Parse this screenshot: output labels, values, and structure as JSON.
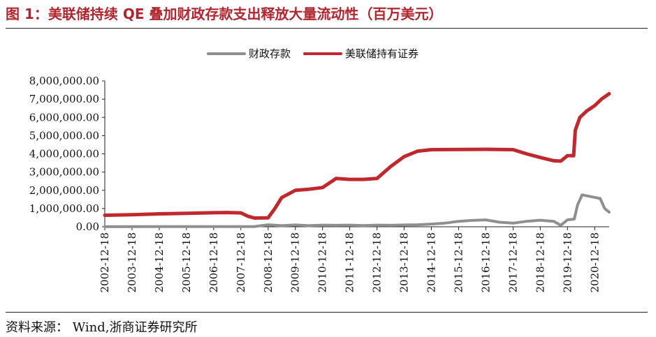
{
  "header": {
    "title": "图 1：美联储持续 QE 叠加财政存款支出释放大量流动性（百万美元）"
  },
  "footer": {
    "source": "资料来源：  Wind,浙商证券研究所"
  },
  "colors": {
    "title": "#b0262f",
    "fed": "#c0282e",
    "tga": "#8f8f8f",
    "axis": "#222222"
  },
  "chart_data": {
    "type": "line",
    "title": "图 1：美联储持续 QE 叠加财政存款支出释放大量流动性（百万美元）",
    "xlabel": "",
    "ylabel": "",
    "grid": false,
    "legend_position": "top-center",
    "ylim": [
      0,
      8000000
    ],
    "xlim": [
      "2002-12-18",
      "2021-06-30"
    ],
    "y_ticks": [
      "0.00",
      "1,000,000.00",
      "2,000,000.00",
      "3,000,000.00",
      "4,000,000.00",
      "5,000,000.00",
      "6,000,000.00",
      "7,000,000.00",
      "8,000,000.00"
    ],
    "x_ticks": [
      "2002-12-18",
      "2003-12-18",
      "2004-12-18",
      "2005-12-18",
      "2006-12-18",
      "2007-12-18",
      "2008-12-18",
      "2009-12-18",
      "2010-12-18",
      "2011-12-18",
      "2012-12-18",
      "2013-12-18",
      "2014-12-18",
      "2015-12-18",
      "2016-12-18",
      "2017-12-18",
      "2018-12-18",
      "2019-12-18",
      "2020-12-18"
    ],
    "series": [
      {
        "name": "财政存款",
        "color": "#8f8f8f",
        "points": [
          [
            "2002-12-18",
            5000
          ],
          [
            "2004-12-18",
            6000
          ],
          [
            "2006-12-18",
            6000
          ],
          [
            "2007-12-18",
            7000
          ],
          [
            "2008-06-18",
            10000
          ],
          [
            "2008-09-18",
            60000
          ],
          [
            "2008-12-18",
            110000
          ],
          [
            "2009-06-18",
            60000
          ],
          [
            "2009-12-18",
            100000
          ],
          [
            "2010-06-18",
            60000
          ],
          [
            "2010-12-18",
            90000
          ],
          [
            "2011-06-18",
            80000
          ],
          [
            "2011-12-18",
            90000
          ],
          [
            "2012-06-18",
            70000
          ],
          [
            "2012-12-18",
            90000
          ],
          [
            "2013-06-18",
            80000
          ],
          [
            "2013-12-18",
            100000
          ],
          [
            "2014-06-18",
            110000
          ],
          [
            "2014-12-18",
            150000
          ],
          [
            "2015-06-18",
            200000
          ],
          [
            "2015-12-18",
            300000
          ],
          [
            "2016-06-18",
            350000
          ],
          [
            "2016-12-18",
            380000
          ],
          [
            "2017-06-18",
            250000
          ],
          [
            "2017-12-18",
            200000
          ],
          [
            "2018-06-18",
            300000
          ],
          [
            "2018-12-18",
            360000
          ],
          [
            "2019-06-18",
            300000
          ],
          [
            "2019-09-18",
            80000
          ],
          [
            "2019-12-18",
            380000
          ],
          [
            "2020-03-18",
            420000
          ],
          [
            "2020-05-01",
            1200000
          ],
          [
            "2020-07-01",
            1750000
          ],
          [
            "2020-09-01",
            1700000
          ],
          [
            "2020-11-01",
            1650000
          ],
          [
            "2021-01-01",
            1600000
          ],
          [
            "2021-03-01",
            1550000
          ],
          [
            "2021-05-01",
            1000000
          ],
          [
            "2021-06-30",
            800000
          ]
        ]
      },
      {
        "name": "美联储持有证券",
        "color": "#c0282e",
        "points": [
          [
            "2002-12-18",
            630000
          ],
          [
            "2003-12-18",
            660000
          ],
          [
            "2004-12-18",
            710000
          ],
          [
            "2005-12-18",
            740000
          ],
          [
            "2006-12-18",
            770000
          ],
          [
            "2007-06-18",
            780000
          ],
          [
            "2007-12-18",
            760000
          ],
          [
            "2008-03-18",
            580000
          ],
          [
            "2008-06-18",
            480000
          ],
          [
            "2008-12-18",
            490000
          ],
          [
            "2009-03-18",
            1000000
          ],
          [
            "2009-06-18",
            1600000
          ],
          [
            "2009-12-18",
            2000000
          ],
          [
            "2010-06-18",
            2060000
          ],
          [
            "2010-12-18",
            2150000
          ],
          [
            "2011-06-18",
            2650000
          ],
          [
            "2011-12-18",
            2600000
          ],
          [
            "2012-06-18",
            2600000
          ],
          [
            "2012-12-18",
            2650000
          ],
          [
            "2013-06-18",
            3300000
          ],
          [
            "2013-12-18",
            3850000
          ],
          [
            "2014-06-18",
            4150000
          ],
          [
            "2014-12-18",
            4230000
          ],
          [
            "2015-12-18",
            4240000
          ],
          [
            "2016-12-18",
            4250000
          ],
          [
            "2017-12-18",
            4230000
          ],
          [
            "2018-06-18",
            4000000
          ],
          [
            "2018-12-18",
            3800000
          ],
          [
            "2019-06-18",
            3620000
          ],
          [
            "2019-09-18",
            3600000
          ],
          [
            "2019-12-18",
            3900000
          ],
          [
            "2020-03-10",
            3900000
          ],
          [
            "2020-04-01",
            5300000
          ],
          [
            "2020-06-01",
            6000000
          ],
          [
            "2020-09-01",
            6350000
          ],
          [
            "2020-12-18",
            6650000
          ],
          [
            "2021-03-18",
            7000000
          ],
          [
            "2021-06-30",
            7300000
          ]
        ]
      }
    ]
  }
}
